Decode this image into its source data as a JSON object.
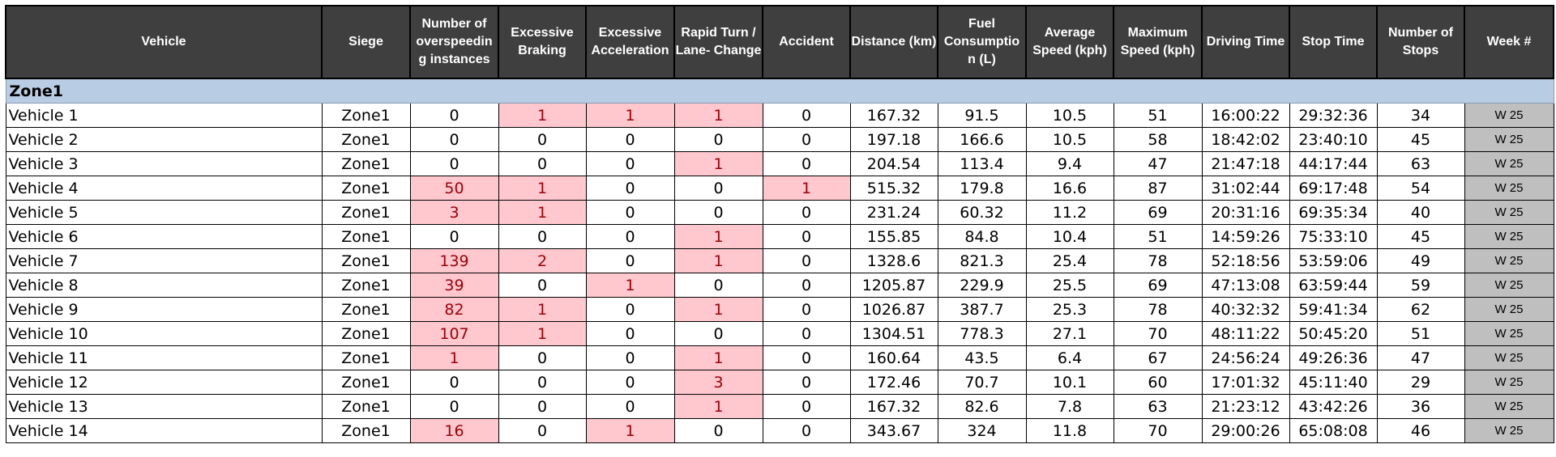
{
  "headers": {
    "vehicle": "Vehicle",
    "siege": "Siege",
    "overspeeding": "Number of overspeedin g instances",
    "braking": "Excessive Braking",
    "acceleration": "Excessive Acceleration",
    "rapid_turn": "Rapid Turn / Lane- Change",
    "accident": "Accident",
    "distance": "Distance (km)",
    "fuel": "Fuel Consumptio n (L)",
    "avg_speed": "Average Speed (kph)",
    "max_speed": "Maximum Speed (kph)",
    "driving_time": "Driving Time",
    "stop_time": "Stop Time",
    "stops": "Number of Stops",
    "week": "Week #"
  },
  "zone_label": "Zone1",
  "highlight_colors": {
    "flag_fill": "#ffc7ce",
    "flag_text": "#9c0006",
    "week_fill": "#bfbfbf",
    "header_fill": "#3f3f3f",
    "zone_fill": "#b8cce4"
  },
  "rows": [
    {
      "vehicle": "Vehicle 1",
      "siege": "Zone1",
      "overspeeding": "0",
      "braking": "1",
      "acceleration": "1",
      "rapid_turn": "1",
      "accident": "0",
      "distance": "167.32",
      "fuel": "91.5",
      "avg_speed": "10.5",
      "max_speed": "51",
      "driving_time": "16:00:22",
      "stop_time": "29:32:36",
      "stops": "34",
      "week": "W 25"
    },
    {
      "vehicle": "Vehicle 2",
      "siege": "Zone1",
      "overspeeding": "0",
      "braking": "0",
      "acceleration": "0",
      "rapid_turn": "0",
      "accident": "0",
      "distance": "197.18",
      "fuel": "166.6",
      "avg_speed": "10.5",
      "max_speed": "58",
      "driving_time": "18:42:02",
      "stop_time": "23:40:10",
      "stops": "45",
      "week": "W 25"
    },
    {
      "vehicle": "Vehicle 3",
      "siege": "Zone1",
      "overspeeding": "0",
      "braking": "0",
      "acceleration": "0",
      "rapid_turn": "1",
      "accident": "0",
      "distance": "204.54",
      "fuel": "113.4",
      "avg_speed": "9.4",
      "max_speed": "47",
      "driving_time": "21:47:18",
      "stop_time": "44:17:44",
      "stops": "63",
      "week": "W 25"
    },
    {
      "vehicle": "Vehicle 4",
      "siege": "Zone1",
      "overspeeding": "50",
      "braking": "1",
      "acceleration": "0",
      "rapid_turn": "0",
      "accident": "1",
      "distance": "515.32",
      "fuel": "179.8",
      "avg_speed": "16.6",
      "max_speed": "87",
      "driving_time": "31:02:44",
      "stop_time": "69:17:48",
      "stops": "54",
      "week": "W 25"
    },
    {
      "vehicle": "Vehicle 5",
      "siege": "Zone1",
      "overspeeding": "3",
      "braking": "1",
      "acceleration": "0",
      "rapid_turn": "0",
      "accident": "0",
      "distance": "231.24",
      "fuel": "60.32",
      "avg_speed": "11.2",
      "max_speed": "69",
      "driving_time": "20:31:16",
      "stop_time": "69:35:34",
      "stops": "40",
      "week": "W 25"
    },
    {
      "vehicle": "Vehicle 6",
      "siege": "Zone1",
      "overspeeding": "0",
      "braking": "0",
      "acceleration": "0",
      "rapid_turn": "1",
      "accident": "0",
      "distance": "155.85",
      "fuel": "84.8",
      "avg_speed": "10.4",
      "max_speed": "51",
      "driving_time": "14:59:26",
      "stop_time": "75:33:10",
      "stops": "45",
      "week": "W 25"
    },
    {
      "vehicle": "Vehicle 7",
      "siege": "Zone1",
      "overspeeding": "139",
      "braking": "2",
      "acceleration": "0",
      "rapid_turn": "1",
      "accident": "0",
      "distance": "1328.6",
      "fuel": "821.3",
      "avg_speed": "25.4",
      "max_speed": "78",
      "driving_time": "52:18:56",
      "stop_time": "53:59:06",
      "stops": "49",
      "week": "W 25"
    },
    {
      "vehicle": "Vehicle 8",
      "siege": "Zone1",
      "overspeeding": "39",
      "braking": "0",
      "acceleration": "1",
      "rapid_turn": "0",
      "accident": "0",
      "distance": "1205.87",
      "fuel": "229.9",
      "avg_speed": "25.5",
      "max_speed": "69",
      "driving_time": "47:13:08",
      "stop_time": "63:59:44",
      "stops": "59",
      "week": "W 25"
    },
    {
      "vehicle": "Vehicle 9",
      "siege": "Zone1",
      "overspeeding": "82",
      "braking": "1",
      "acceleration": "0",
      "rapid_turn": "1",
      "accident": "0",
      "distance": "1026.87",
      "fuel": "387.7",
      "avg_speed": "25.3",
      "max_speed": "78",
      "driving_time": "40:32:32",
      "stop_time": "59:41:34",
      "stops": "62",
      "week": "W 25"
    },
    {
      "vehicle": "Vehicle 10",
      "siege": "Zone1",
      "overspeeding": "107",
      "braking": "1",
      "acceleration": "0",
      "rapid_turn": "0",
      "accident": "0",
      "distance": "1304.51",
      "fuel": "778.3",
      "avg_speed": "27.1",
      "max_speed": "70",
      "driving_time": "48:11:22",
      "stop_time": "50:45:20",
      "stops": "51",
      "week": "W 25"
    },
    {
      "vehicle": "Vehicle 11",
      "siege": "Zone1",
      "overspeeding": "1",
      "braking": "0",
      "acceleration": "0",
      "rapid_turn": "1",
      "accident": "0",
      "distance": "160.64",
      "fuel": "43.5",
      "avg_speed": "6.4",
      "max_speed": "67",
      "driving_time": "24:56:24",
      "stop_time": "49:26:36",
      "stops": "47",
      "week": "W 25"
    },
    {
      "vehicle": "Vehicle 12",
      "siege": "Zone1",
      "overspeeding": "0",
      "braking": "0",
      "acceleration": "0",
      "rapid_turn": "3",
      "accident": "0",
      "distance": "172.46",
      "fuel": "70.7",
      "avg_speed": "10.1",
      "max_speed": "60",
      "driving_time": "17:01:32",
      "stop_time": "45:11:40",
      "stops": "29",
      "week": "W 25"
    },
    {
      "vehicle": "Vehicle 13",
      "siege": "Zone1",
      "overspeeding": "0",
      "braking": "0",
      "acceleration": "0",
      "rapid_turn": "1",
      "accident": "0",
      "distance": "167.32",
      "fuel": "82.6",
      "avg_speed": "7.8",
      "max_speed": "63",
      "driving_time": "21:23:12",
      "stop_time": "43:42:26",
      "stops": "36",
      "week": "W 25"
    },
    {
      "vehicle": "Vehicle 14",
      "siege": "Zone1",
      "overspeeding": "16",
      "braking": "0",
      "acceleration": "1",
      "rapid_turn": "0",
      "accident": "0",
      "distance": "343.67",
      "fuel": "324",
      "avg_speed": "11.8",
      "max_speed": "70",
      "driving_time": "29:00:26",
      "stop_time": "65:08:08",
      "stops": "46",
      "week": "W 25"
    }
  ]
}
